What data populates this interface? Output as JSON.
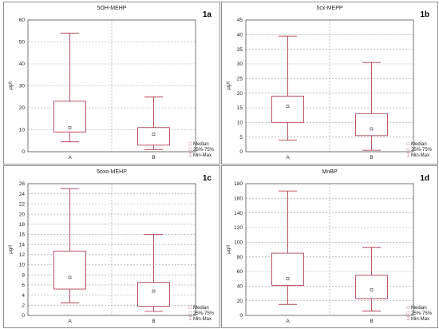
{
  "colors": {
    "box": "#b44355",
    "grid": "#9a9a9a",
    "axis": "#555555",
    "text": "#222222"
  },
  "legend": {
    "median": "Median",
    "iqr": "25%-75%",
    "range": "Min-Max"
  },
  "chart_data": [
    {
      "type": "boxplot",
      "panel_id": "1a",
      "title": "5OH-MEHP",
      "ylabel": "µg/l",
      "ylim": [
        0,
        60
      ],
      "yticks": [
        0,
        10,
        20,
        30,
        40,
        50,
        60
      ],
      "categories": [
        "A",
        "B"
      ],
      "boxes": [
        {
          "category": "A",
          "min": 4.5,
          "q1": 9,
          "median": 11,
          "q3": 23,
          "max": 54
        },
        {
          "category": "B",
          "min": 1,
          "q1": 3,
          "median": 8,
          "q3": 11,
          "max": 25
        }
      ],
      "grid": true
    },
    {
      "type": "boxplot",
      "panel_id": "1b",
      "title": "5cx-MEPP",
      "ylabel": "µg/l",
      "ylim": [
        0,
        45
      ],
      "yticks": [
        0,
        5,
        10,
        15,
        20,
        25,
        30,
        35,
        40,
        45
      ],
      "categories": [
        "A",
        "B"
      ],
      "boxes": [
        {
          "category": "A",
          "min": 4,
          "q1": 10,
          "median": 15.5,
          "q3": 19,
          "max": 39.5
        },
        {
          "category": "B",
          "min": 0.5,
          "q1": 5.5,
          "median": 7.8,
          "q3": 13,
          "max": 30.5
        }
      ],
      "grid": true
    },
    {
      "type": "boxplot",
      "panel_id": "1c",
      "title": "5oxo-MEHP",
      "ylabel": "µg/l",
      "ylim": [
        0,
        26
      ],
      "yticks": [
        0,
        2,
        4,
        6,
        8,
        10,
        12,
        14,
        16,
        18,
        20,
        22,
        24,
        26
      ],
      "categories": [
        "A",
        "B"
      ],
      "boxes": [
        {
          "category": "A",
          "min": 2.5,
          "q1": 5.2,
          "median": 7.5,
          "q3": 12.7,
          "max": 25
        },
        {
          "category": "B",
          "min": 0.8,
          "q1": 1.8,
          "median": 4.8,
          "q3": 6.5,
          "max": 16
        }
      ],
      "grid": true
    },
    {
      "type": "boxplot",
      "panel_id": "1d",
      "title": "MnBP",
      "ylabel": "µg/l",
      "ylim": [
        0,
        180
      ],
      "yticks": [
        0,
        20,
        40,
        60,
        80,
        100,
        120,
        140,
        160,
        180
      ],
      "categories": [
        "A",
        "B"
      ],
      "boxes": [
        {
          "category": "A",
          "min": 15,
          "q1": 41,
          "median": 50,
          "q3": 85,
          "max": 170
        },
        {
          "category": "B",
          "min": 6,
          "q1": 23,
          "median": 35,
          "q3": 55,
          "max": 93
        }
      ],
      "grid": true
    }
  ]
}
